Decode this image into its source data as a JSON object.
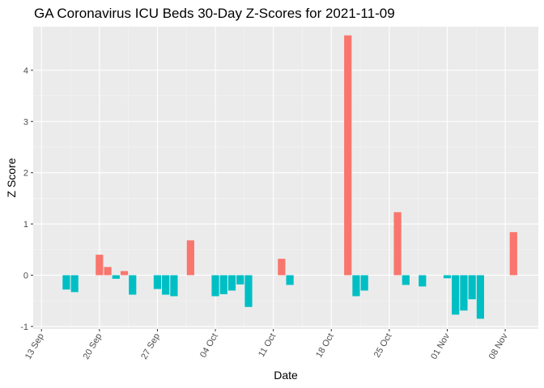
{
  "chart_data": {
    "type": "bar",
    "title": "GA Coronavirus ICU Beds 30-Day Z-Scores for 2021-11-09",
    "xlabel": "Date",
    "ylabel": "Z Score",
    "x_type": "date",
    "xlim": [
      "2021-09-12",
      "2021-11-12"
    ],
    "ylim": [
      -1.05,
      4.85
    ],
    "x_ticks": [
      {
        "date": "2021-09-13",
        "label": "13 Sep"
      },
      {
        "date": "2021-09-20",
        "label": "20 Sep"
      },
      {
        "date": "2021-09-27",
        "label": "27 Sep"
      },
      {
        "date": "2021-10-04",
        "label": "04 Oct"
      },
      {
        "date": "2021-10-11",
        "label": "11 Oct"
      },
      {
        "date": "2021-10-18",
        "label": "18 Oct"
      },
      {
        "date": "2021-10-25",
        "label": "25 Oct"
      },
      {
        "date": "2021-11-01",
        "label": "01 Nov"
      },
      {
        "date": "2021-11-08",
        "label": "08 Nov"
      }
    ],
    "y_ticks": [
      -1,
      0,
      1,
      2,
      3,
      4
    ],
    "grid": true,
    "legend": "none",
    "colors": {
      "positive": "#F8766D",
      "negative": "#00BFC4",
      "panel": "#EBEBEB",
      "grid_major": "#FFFFFF",
      "grid_minor": "#F5F5F5"
    },
    "bars": [
      {
        "date": "2021-09-16",
        "value": -0.28
      },
      {
        "date": "2021-09-17",
        "value": -0.33
      },
      {
        "date": "2021-09-20",
        "value": 0.4
      },
      {
        "date": "2021-09-21",
        "value": 0.16
      },
      {
        "date": "2021-09-22",
        "value": -0.07
      },
      {
        "date": "2021-09-23",
        "value": 0.08
      },
      {
        "date": "2021-09-24",
        "value": -0.38
      },
      {
        "date": "2021-09-27",
        "value": -0.27
      },
      {
        "date": "2021-09-28",
        "value": -0.38
      },
      {
        "date": "2021-09-29",
        "value": -0.41
      },
      {
        "date": "2021-10-01",
        "value": 0.68
      },
      {
        "date": "2021-10-04",
        "value": -0.41
      },
      {
        "date": "2021-10-05",
        "value": -0.37
      },
      {
        "date": "2021-10-06",
        "value": -0.3
      },
      {
        "date": "2021-10-07",
        "value": -0.18
      },
      {
        "date": "2021-10-08",
        "value": -0.62
      },
      {
        "date": "2021-10-12",
        "value": 0.32
      },
      {
        "date": "2021-10-13",
        "value": -0.19
      },
      {
        "date": "2021-10-20",
        "value": 4.68
      },
      {
        "date": "2021-10-21",
        "value": -0.41
      },
      {
        "date": "2021-10-22",
        "value": -0.3
      },
      {
        "date": "2021-10-26",
        "value": 1.23
      },
      {
        "date": "2021-10-27",
        "value": -0.19
      },
      {
        "date": "2021-10-29",
        "value": -0.22
      },
      {
        "date": "2021-11-01",
        "value": -0.06
      },
      {
        "date": "2021-11-02",
        "value": -0.77
      },
      {
        "date": "2021-11-03",
        "value": -0.69
      },
      {
        "date": "2021-11-04",
        "value": -0.47
      },
      {
        "date": "2021-11-05",
        "value": -0.85
      },
      {
        "date": "2021-11-09",
        "value": 0.84
      }
    ]
  }
}
